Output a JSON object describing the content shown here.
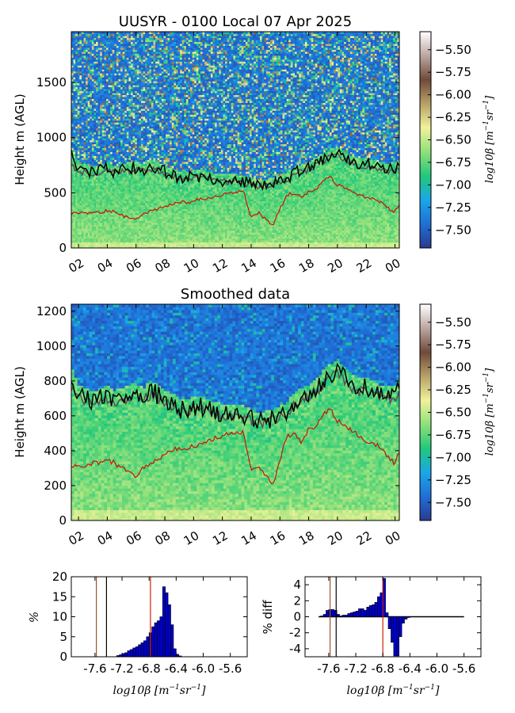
{
  "colors": {
    "colormap": [
      "#2a3a8f",
      "#1f6fd8",
      "#1aa7e8",
      "#22c87a",
      "#8fe07a",
      "#f1f29a",
      "#b8a168",
      "#6f4a3a",
      "#bca6a0",
      "#ffffff"
    ],
    "red_line": "#cc1100",
    "black_line": "#000000",
    "grey_line": "#555555",
    "hist_bar": "#0000cc",
    "vline_red": "#cc2200",
    "vline_brown": "#a0522d",
    "vline_black": "#000000"
  },
  "chart_data": [
    {
      "id": "top",
      "type": "heatmap",
      "title": "UUSYR - 0100 Local 07 Apr 2025",
      "xlabel": "",
      "ylabel": "Height m (AGL)",
      "x_ticks": [
        "02",
        "04",
        "06",
        "08",
        "10",
        "12",
        "14",
        "16",
        "18",
        "20",
        "22",
        "00"
      ],
      "x_range_hours": [
        1.5,
        24.3
      ],
      "y_ticks": [
        0,
        500,
        1000,
        1500
      ],
      "ylim": [
        0,
        1960
      ],
      "colorbar": {
        "label": "log10β [m⁻¹sr⁻¹]",
        "ticks": [
          -5.5,
          -5.75,
          -6.0,
          -6.25,
          -6.5,
          -6.75,
          -7.0,
          -7.25,
          -7.5
        ],
        "tick_labels": [
          "−5.50",
          "−5.75",
          "−6.00",
          "−6.25",
          "−6.50",
          "−6.75",
          "−7.00",
          "−7.25",
          "−7.50"
        ],
        "range": [
          -7.7,
          -5.3
        ]
      },
      "grid": false,
      "noisy_field": true
    },
    {
      "id": "smooth",
      "type": "heatmap",
      "title": "Smoothed data",
      "xlabel": "",
      "ylabel": "Height m (AGL)",
      "x_ticks": [
        "02",
        "04",
        "06",
        "08",
        "10",
        "12",
        "14",
        "16",
        "18",
        "20",
        "22",
        "00"
      ],
      "x_range_hours": [
        1.5,
        24.3
      ],
      "y_ticks": [
        0,
        200,
        400,
        600,
        800,
        1000,
        1200
      ],
      "ylim": [
        0,
        1240
      ],
      "colorbar": {
        "label": "log10β [m⁻¹sr⁻¹]",
        "ticks": [
          -5.5,
          -5.75,
          -6.0,
          -6.25,
          -6.5,
          -6.75,
          -7.0,
          -7.25,
          -7.5
        ],
        "tick_labels": [
          "−5.50",
          "−5.75",
          "−6.00",
          "−6.25",
          "−6.50",
          "−6.75",
          "−7.00",
          "−7.25",
          "−7.50"
        ],
        "range": [
          -7.7,
          -5.3
        ]
      },
      "grid": false,
      "noisy_field": false
    },
    {
      "id": "hist",
      "type": "bar",
      "title": "",
      "xlabel": "log10β [m⁻¹sr⁻¹]",
      "ylabel": "%",
      "x_ticks": [
        -7.6,
        -7.2,
        -6.8,
        -6.4,
        -6.0,
        -5.6
      ],
      "x_tick_labels": [
        "-7.6",
        "-7.2",
        "-6.8",
        "-6.4",
        "-6.0",
        "-5.6"
      ],
      "xlim": [
        -7.95,
        -5.35
      ],
      "y_ticks": [
        0,
        5,
        10,
        15,
        20
      ],
      "ylim": [
        0,
        20
      ],
      "bin_width": 0.04,
      "bins": [
        [
          -7.28,
          0.3
        ],
        [
          -7.24,
          0.5
        ],
        [
          -7.2,
          0.8
        ],
        [
          -7.16,
          1.0
        ],
        [
          -7.12,
          1.5
        ],
        [
          -7.08,
          1.8
        ],
        [
          -7.04,
          2.2
        ],
        [
          -7.0,
          2.5
        ],
        [
          -6.96,
          3.0
        ],
        [
          -6.92,
          3.5
        ],
        [
          -6.88,
          4.0
        ],
        [
          -6.84,
          5.0
        ],
        [
          -6.8,
          6.0
        ],
        [
          -6.76,
          7.5
        ],
        [
          -6.72,
          8.5
        ],
        [
          -6.68,
          9.0
        ],
        [
          -6.64,
          10.0
        ],
        [
          -6.6,
          17.5
        ],
        [
          -6.56,
          16.0
        ],
        [
          -6.52,
          13.0
        ],
        [
          -6.48,
          8.0
        ],
        [
          -6.44,
          2.0
        ],
        [
          -6.4,
          0.6
        ],
        [
          -6.36,
          0.2
        ]
      ],
      "vlines": [
        {
          "x": -7.58,
          "color": "vline_brown"
        },
        {
          "x": -7.43,
          "color": "vline_black"
        },
        {
          "x": -6.78,
          "color": "vline_red"
        }
      ]
    },
    {
      "id": "diff",
      "type": "bar",
      "title": "",
      "xlabel": "log10β [m⁻¹sr⁻¹]",
      "ylabel": "% diff",
      "x_ticks": [
        -7.6,
        -7.2,
        -6.8,
        -6.4,
        -6.0,
        -5.6
      ],
      "x_tick_labels": [
        "-7.6",
        "-7.2",
        "-6.8",
        "-6.4",
        "-6.0",
        "-5.6"
      ],
      "xlim": [
        -7.95,
        -5.35
      ],
      "y_ticks": [
        -4,
        -2,
        0,
        2,
        4
      ],
      "ylim": [
        -5,
        5
      ],
      "bin_width": 0.04,
      "bins": [
        [
          -7.72,
          0.1
        ],
        [
          -7.68,
          0.3
        ],
        [
          -7.64,
          0.8
        ],
        [
          -7.6,
          0.9
        ],
        [
          -7.56,
          0.9
        ],
        [
          -7.52,
          0.8
        ],
        [
          -7.48,
          0.3
        ],
        [
          -7.44,
          0.1
        ],
        [
          -7.4,
          0.2
        ],
        [
          -7.36,
          0.2
        ],
        [
          -7.32,
          0.4
        ],
        [
          -7.28,
          0.5
        ],
        [
          -7.24,
          0.6
        ],
        [
          -7.2,
          0.7
        ],
        [
          -7.16,
          1.0
        ],
        [
          -7.12,
          1.0
        ],
        [
          -7.08,
          0.8
        ],
        [
          -7.04,
          1.2
        ],
        [
          -7.0,
          1.4
        ],
        [
          -6.96,
          1.5
        ],
        [
          -6.92,
          1.8
        ],
        [
          -6.88,
          2.5
        ],
        [
          -6.84,
          3.0
        ],
        [
          -6.8,
          4.8
        ],
        [
          -6.76,
          0.5
        ],
        [
          -6.72,
          -1.5
        ],
        [
          -6.68,
          -3.2
        ],
        [
          -6.64,
          -4.9
        ],
        [
          -6.6,
          -4.9
        ],
        [
          -6.56,
          -2.5
        ],
        [
          -6.52,
          -0.8
        ],
        [
          -6.48,
          -0.3
        ],
        [
          -6.44,
          -0.1
        ]
      ],
      "zero_line_range": [
        -7.75,
        -5.6
      ],
      "vlines": [
        {
          "x": -7.58,
          "color": "vline_brown"
        },
        {
          "x": -7.49,
          "color": "vline_black"
        },
        {
          "x": -6.8,
          "color": "vline_red"
        }
      ]
    }
  ],
  "series_profiles": {
    "hours": [
      1.5,
      2,
      2.5,
      3,
      3.5,
      4,
      4.5,
      5,
      5.5,
      6,
      6.5,
      7,
      7.5,
      8,
      8.5,
      9,
      9.5,
      10,
      10.5,
      11,
      11.5,
      12,
      12.5,
      13,
      13.5,
      14,
      14.5,
      15,
      15.5,
      16,
      16.5,
      17,
      17.5,
      18,
      18.5,
      19,
      19.5,
      20,
      20.5,
      21,
      21.5,
      22,
      22.5,
      23,
      23.5,
      24,
      24.3
    ],
    "red_boundary": [
      310,
      315,
      320,
      330,
      325,
      340,
      330,
      300,
      270,
      260,
      300,
      330,
      350,
      380,
      400,
      420,
      410,
      430,
      440,
      450,
      470,
      480,
      500,
      510,
      500,
      280,
      320,
      260,
      200,
      350,
      480,
      500,
      450,
      520,
      530,
      610,
      640,
      570,
      540,
      520,
      480,
      460,
      440,
      420,
      360,
      330,
      390
    ],
    "black_mixing": [
      840,
      720,
      700,
      680,
      700,
      720,
      690,
      700,
      720,
      730,
      700,
      740,
      720,
      690,
      670,
      640,
      630,
      650,
      650,
      640,
      620,
      610,
      610,
      610,
      600,
      580,
      560,
      570,
      580,
      600,
      620,
      680,
      700,
      720,
      760,
      800,
      840,
      860,
      820,
      780,
      760,
      760,
      740,
      720,
      710,
      720,
      760
    ],
    "grey_mixing": [
      760,
      700,
      680,
      670,
      680,
      700,
      680,
      690,
      700,
      710,
      690,
      720,
      700,
      680,
      660,
      630,
      620,
      640,
      640,
      630,
      610,
      600,
      600,
      600,
      590,
      570,
      560,
      565,
      575,
      595,
      610,
      660,
      690,
      710,
      740,
      780,
      820,
      840,
      800,
      760,
      740,
      740,
      720,
      700,
      690,
      700,
      740
    ]
  }
}
